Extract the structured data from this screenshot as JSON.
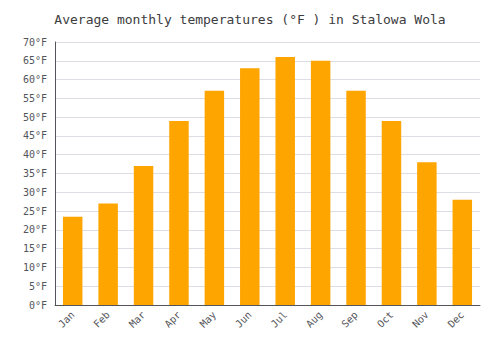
{
  "chart_data": {
    "type": "bar",
    "title": "Average monthly temperatures (°F ) in Stalowa Wola",
    "categories": [
      "Jan",
      "Feb",
      "Mar",
      "Apr",
      "May",
      "Jun",
      "Jul",
      "Aug",
      "Sep",
      "Oct",
      "Nov",
      "Dec"
    ],
    "values": [
      23.5,
      27.0,
      37.0,
      49.0,
      57.0,
      63.0,
      66.0,
      65.0,
      57.0,
      49.0,
      38.0,
      28.0
    ],
    "color": "#FFA500",
    "ylim": [
      0,
      70
    ],
    "yticks": [
      {
        "value": 0,
        "label": "0°F"
      },
      {
        "value": 5,
        "label": "5°F"
      },
      {
        "value": 10,
        "label": "10°F"
      },
      {
        "value": 15,
        "label": "15°F"
      },
      {
        "value": 20,
        "label": "20°F"
      },
      {
        "value": 25,
        "label": "25°F"
      },
      {
        "value": 30,
        "label": "30°F"
      },
      {
        "value": 35,
        "label": "35°F"
      },
      {
        "value": 40,
        "label": "40°F"
      },
      {
        "value": 45,
        "label": "45°F"
      },
      {
        "value": 50,
        "label": "50°F"
      },
      {
        "value": 55,
        "label": "55°F"
      },
      {
        "value": 60,
        "label": "60°F"
      },
      {
        "value": 65,
        "label": "65°F"
      },
      {
        "value": 70,
        "label": "70°F"
      }
    ],
    "grid": true
  }
}
